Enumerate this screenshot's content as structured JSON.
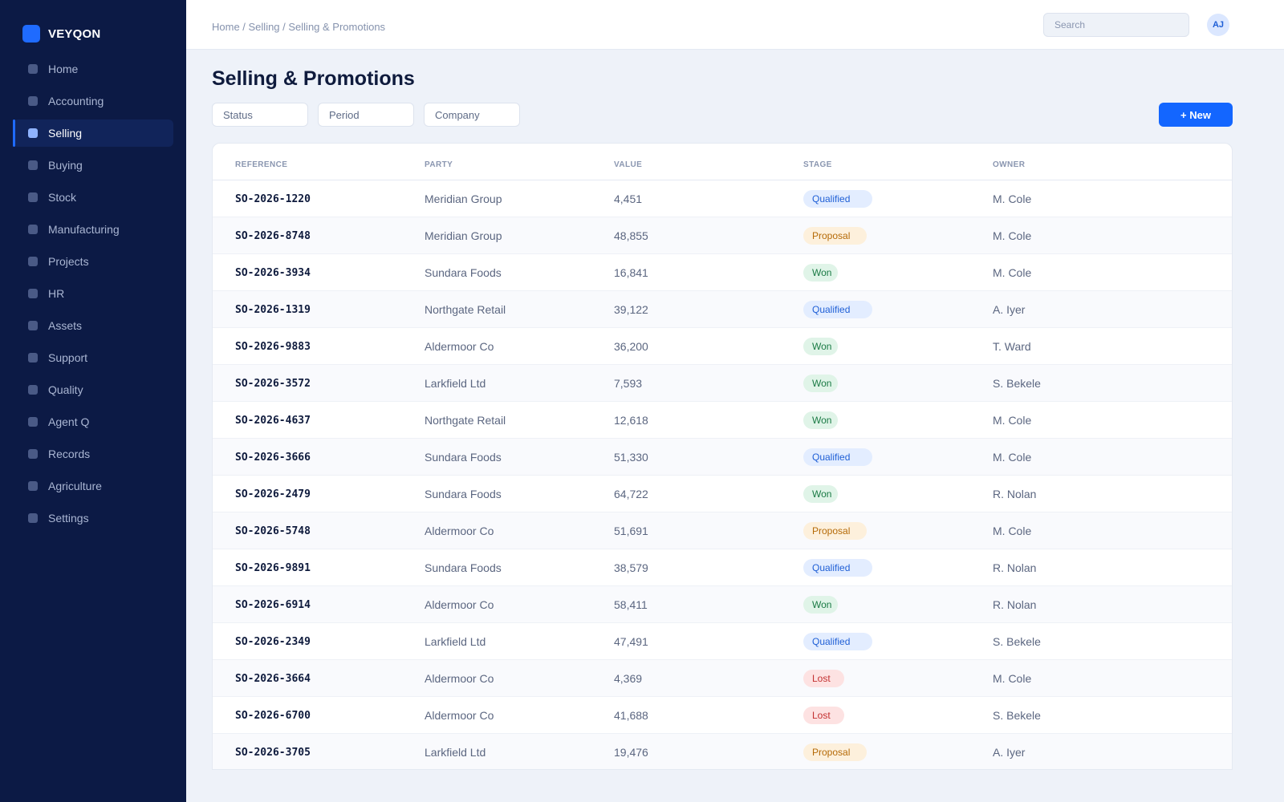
{
  "brand": {
    "name": "VEYQON"
  },
  "sidebar": {
    "items": [
      {
        "label": "Home",
        "icon": "home-icon",
        "active": false
      },
      {
        "label": "Accounting",
        "icon": "accounting-icon",
        "active": false
      },
      {
        "label": "Selling",
        "icon": "selling-icon",
        "active": true
      },
      {
        "label": "Buying",
        "icon": "buying-icon",
        "active": false
      },
      {
        "label": "Stock",
        "icon": "stock-icon",
        "active": false
      },
      {
        "label": "Manufacturing",
        "icon": "manufacturing-icon",
        "active": false
      },
      {
        "label": "Projects",
        "icon": "projects-icon",
        "active": false
      },
      {
        "label": "HR",
        "icon": "hr-icon",
        "active": false
      },
      {
        "label": "Assets",
        "icon": "assets-icon",
        "active": false
      },
      {
        "label": "Support",
        "icon": "support-icon",
        "active": false
      },
      {
        "label": "Quality",
        "icon": "quality-icon",
        "active": false
      },
      {
        "label": "Agent Q",
        "icon": "agent-icon",
        "active": false
      },
      {
        "label": "Records",
        "icon": "records-icon",
        "active": false
      },
      {
        "label": "Agriculture",
        "icon": "agriculture-icon",
        "active": false
      },
      {
        "label": "Settings",
        "icon": "settings-icon",
        "active": false
      }
    ]
  },
  "topbar": {
    "breadcrumb": "Home / Selling / Selling & Promotions",
    "search_placeholder": "Search",
    "avatar_initials": "AJ"
  },
  "main": {
    "title": "Selling & Promotions",
    "filters": [
      "Status",
      "Period",
      "Company"
    ],
    "new_button": "+ New",
    "columns": [
      "REFERENCE",
      "PARTY",
      "VALUE",
      "STAGE",
      "OWNER"
    ],
    "rows": [
      {
        "reference": "SO-2026-1220",
        "party": "Meridian Group",
        "value": "4,451",
        "stage": "Qualified",
        "owner": "M. Cole"
      },
      {
        "reference": "SO-2026-8748",
        "party": "Meridian Group",
        "value": "48,855",
        "stage": "Proposal",
        "owner": "M. Cole"
      },
      {
        "reference": "SO-2026-3934",
        "party": "Sundara Foods",
        "value": "16,841",
        "stage": "Won",
        "owner": "M. Cole"
      },
      {
        "reference": "SO-2026-1319",
        "party": "Northgate Retail",
        "value": "39,122",
        "stage": "Qualified",
        "owner": "A. Iyer"
      },
      {
        "reference": "SO-2026-9883",
        "party": "Aldermoor Co",
        "value": "36,200",
        "stage": "Won",
        "owner": "T. Ward"
      },
      {
        "reference": "SO-2026-3572",
        "party": "Larkfield Ltd",
        "value": "7,593",
        "stage": "Won",
        "owner": "S. Bekele"
      },
      {
        "reference": "SO-2026-4637",
        "party": "Northgate Retail",
        "value": "12,618",
        "stage": "Won",
        "owner": "M. Cole"
      },
      {
        "reference": "SO-2026-3666",
        "party": "Sundara Foods",
        "value": "51,330",
        "stage": "Qualified",
        "owner": "M. Cole"
      },
      {
        "reference": "SO-2026-2479",
        "party": "Sundara Foods",
        "value": "64,722",
        "stage": "Won",
        "owner": "R. Nolan"
      },
      {
        "reference": "SO-2026-5748",
        "party": "Aldermoor Co",
        "value": "51,691",
        "stage": "Proposal",
        "owner": "M. Cole"
      },
      {
        "reference": "SO-2026-9891",
        "party": "Sundara Foods",
        "value": "38,579",
        "stage": "Qualified",
        "owner": "R. Nolan"
      },
      {
        "reference": "SO-2026-6914",
        "party": "Aldermoor Co",
        "value": "58,411",
        "stage": "Won",
        "owner": "R. Nolan"
      },
      {
        "reference": "SO-2026-2349",
        "party": "Larkfield Ltd",
        "value": "47,491",
        "stage": "Qualified",
        "owner": "S. Bekele"
      },
      {
        "reference": "SO-2026-3664",
        "party": "Aldermoor Co",
        "value": "4,369",
        "stage": "Lost",
        "owner": "M. Cole"
      },
      {
        "reference": "SO-2026-6700",
        "party": "Aldermoor Co",
        "value": "41,688",
        "stage": "Lost",
        "owner": "S. Bekele"
      },
      {
        "reference": "SO-2026-3705",
        "party": "Larkfield Ltd",
        "value": "19,476",
        "stage": "Proposal",
        "owner": "A. Iyer"
      }
    ]
  },
  "colors": {
    "sidebar_bg": "#0c1a45",
    "accent": "#1366ff",
    "qualified": "#1f5fd6",
    "proposal": "#b56a07",
    "won": "#1a7a44",
    "lost": "#c33030"
  }
}
